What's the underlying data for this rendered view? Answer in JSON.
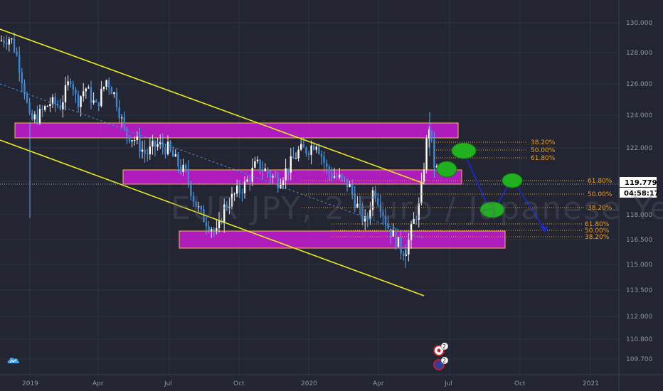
{
  "watermark": "EUR JPY, 2   Euro / Japanese Yen",
  "logo": {
    "icon": "tradingview-cloud-icon",
    "color": "#3fa6ee"
  },
  "price_tag": {
    "price": "119.779",
    "countdown": "04:58:17"
  },
  "event_badges": [
    {
      "count": "2"
    },
    {
      "count": "2"
    }
  ],
  "chart_data": {
    "type": "candlestick",
    "y_ticks": [
      "130.000",
      "128.000",
      "126.000",
      "124.000",
      "122.000",
      "120.000",
      "118.000",
      "116.500",
      "115.000",
      "113.500",
      "112.000",
      "110.800",
      "109.700"
    ],
    "y_tick_values": [
      130,
      128,
      126,
      124,
      122,
      120,
      118,
      116.5,
      115,
      113.5,
      112,
      110.8,
      109.7
    ],
    "x_ticks": [
      "2019",
      "Apr",
      "Jul",
      "Oct",
      "2020",
      "Apr",
      "Jul",
      "Oct",
      "2021"
    ],
    "current_price": 119.779,
    "zones": [
      {
        "from": 122.5,
        "to": 123.45,
        "color": "#c71cd3"
      },
      {
        "from": 119.8,
        "to": 120.7,
        "color": "#c71cd3"
      },
      {
        "from": 116.05,
        "to": 117.2,
        "color": "#c71cd3"
      }
    ],
    "fib_levels": [
      {
        "label": "38.20%",
        "value": 122.4
      },
      {
        "label": "50.00%",
        "value": 121.9
      },
      {
        "label": "61.80%",
        "value": 121.4
      },
      {
        "label": "61.80%",
        "value": 119.7
      },
      {
        "label": "50.00%",
        "value": 118.8
      },
      {
        "label": "38.20%",
        "value": 117.9
      },
      {
        "label": "61.80%",
        "value": 117.0
      },
      {
        "label": "50.00%",
        "value": 116.7
      },
      {
        "label": "38.20%",
        "value": 116.45
      }
    ],
    "channel_color": "#e8e81c",
    "projection_color": "#1a2ad8",
    "target_color": "#20b020"
  }
}
